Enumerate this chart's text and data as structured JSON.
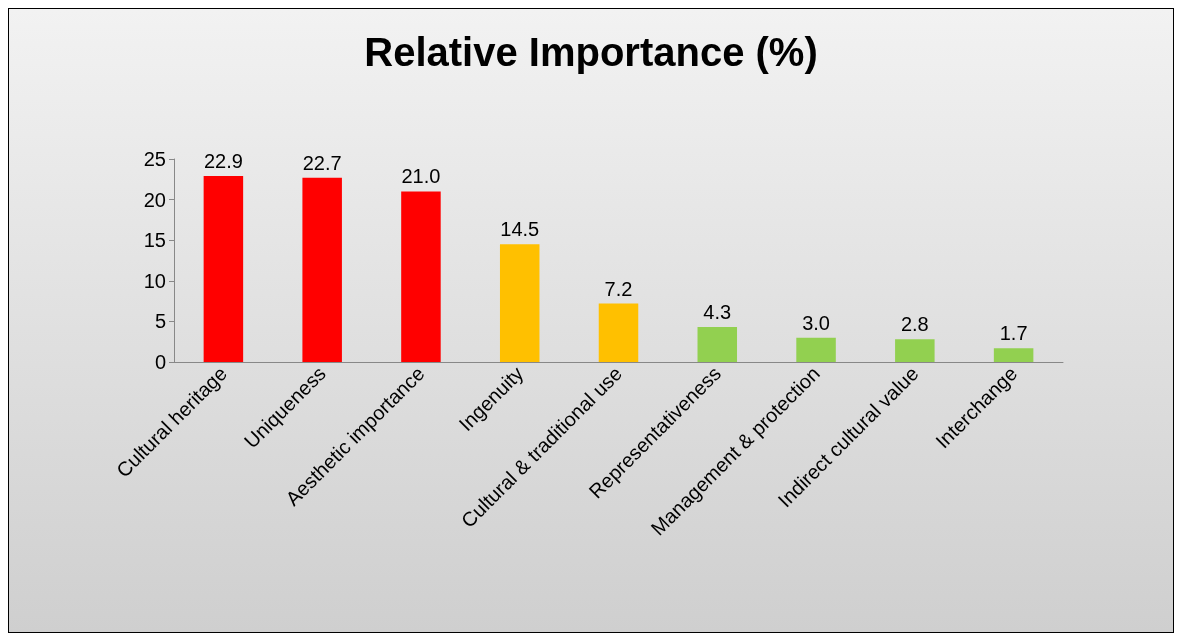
{
  "chart_data": {
    "type": "bar",
    "title": "Relative Importance (%)",
    "categories": [
      "Cultural heritage",
      "Uniqueness",
      "Aesthetic importance",
      "Ingenuity",
      "Cultural & traditional use",
      "Representativeness",
      "Management & protection",
      "Indirect cultural value",
      "Interchange"
    ],
    "values": [
      22.9,
      22.7,
      21.0,
      14.5,
      7.2,
      4.3,
      3.0,
      2.8,
      1.7
    ],
    "value_labels": [
      "22.9",
      "22.7",
      "21.0",
      "14.5",
      "7.2",
      "4.3",
      "3.0",
      "2.8",
      "1.7"
    ],
    "colors": [
      "#ff0000",
      "#ff0000",
      "#ff0000",
      "#ffc000",
      "#ffc000",
      "#92d050",
      "#92d050",
      "#92d050",
      "#92d050"
    ],
    "ylim": [
      0,
      25
    ],
    "yticks": [
      0,
      5,
      10,
      15,
      20,
      25
    ],
    "grid": false
  }
}
